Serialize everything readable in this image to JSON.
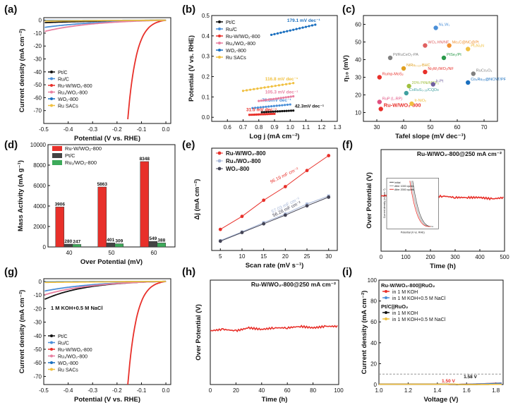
{
  "chart_data": [
    {
      "id": "a",
      "type": "line",
      "panel_label": "(a)",
      "xlabel": "Potential (V vs. RHE)",
      "ylabel": "Current density (mA cm⁻²)",
      "xlim": [
        -0.5,
        0.02
      ],
      "ylim": [
        -80,
        2
      ],
      "xticks": [
        "-0.5",
        "-0.4",
        "-0.3",
        "-0.2",
        "-0.1",
        "0.0"
      ],
      "yticks": [
        "0",
        "-10",
        "-20",
        "-30",
        "-40",
        "-50",
        "-60",
        "-70"
      ],
      "series": [
        {
          "name": "Pt/C",
          "color": "#111111",
          "onset": -0.02,
          "k": 0.0085
        },
        {
          "name": "Ru/C",
          "color": "#4a8fd8",
          "onset": -0.005,
          "k": 0.005
        },
        {
          "name": "Ru-W/WO₂-800",
          "color": "#e8302a",
          "onset": 0.0,
          "k": 0.0007
        },
        {
          "name": "Ru₁/WO₂-800",
          "color": "#e87fa0",
          "onset": 0.0,
          "k": 0.0042
        },
        {
          "name": "WO₂-800",
          "color": "#1a6fbf",
          "onset": 0.0,
          "k": 0.032
        },
        {
          "name": "Ru SACs",
          "color": "#f0c040",
          "onset": 0.0,
          "k": 0.018
        }
      ]
    },
    {
      "id": "b",
      "type": "line",
      "panel_label": "(b)",
      "xlabel": "Log j (mA cm⁻²)",
      "ylabel": "Potential (V vs. RHE)",
      "xlim": [
        0.5,
        1.3
      ],
      "ylim": [
        -0.02,
        0.5
      ],
      "xticks": [
        "0.6",
        "0.7",
        "0.8",
        "0.9",
        "1.0",
        "1.1",
        "1.2",
        "1.3"
      ],
      "yticks": [
        "0.0",
        "0.1",
        "0.2",
        "0.3",
        "0.4",
        "0.5"
      ],
      "series": [
        {
          "name": "Pt/C",
          "color": "#111111",
          "slope_label": "42.3mV dec⁻¹",
          "points": [
            [
              0.82,
              0.025
            ],
            [
              1.02,
              0.033
            ]
          ]
        },
        {
          "name": "Ru/C",
          "color": "#4a8fd8",
          "slope_label": "76.5mV dec⁻¹",
          "points": [
            [
              0.76,
              0.045
            ],
            [
              1.0,
              0.063
            ]
          ]
        },
        {
          "name": "Ru-W/WO₂-800",
          "color": "#e8302a",
          "slope_label": "31.5 mV dec⁻¹",
          "points": [
            [
              0.74,
              0.012
            ],
            [
              0.9,
              0.017
            ]
          ]
        },
        {
          "name": "Ru₁/WO₂-800",
          "color": "#e87fa0",
          "slope_label": "105.3 mV dec⁻¹",
          "points": [
            [
              0.8,
              0.08
            ],
            [
              1.02,
              0.103
            ]
          ]
        },
        {
          "name": "WO₂-800",
          "color": "#1a6fbf",
          "slope_label": "179.1 mV dec⁻¹",
          "points": [
            [
              0.88,
              0.405
            ],
            [
              1.16,
              0.455
            ]
          ]
        },
        {
          "name": "Ru SACs",
          "color": "#f0c040",
          "slope_label": "116.8 mV dec⁻¹",
          "points": [
            [
              0.7,
              0.13
            ],
            [
              1.02,
              0.168
            ]
          ]
        }
      ]
    },
    {
      "id": "c",
      "type": "scatter",
      "panel_label": "(c)",
      "xlabel": "Tafel slope (mV dec⁻¹)",
      "ylabel": "η₁₀ (mV)",
      "xlim": [
        25,
        75
      ],
      "ylim": [
        5,
        65
      ],
      "xticks": [
        "30",
        "40",
        "50",
        "60",
        "70"
      ],
      "yticks": [
        "10",
        "20",
        "30",
        "40",
        "50",
        "60"
      ],
      "points": [
        {
          "label": "Ru-W/WO₂-800",
          "x": 31.5,
          "y": 12,
          "color": "#e8302a"
        },
        {
          "label": "Ni₁.W₁",
          "x": 52,
          "y": 58,
          "color": "#4a8fd8"
        },
        {
          "label": "WO₂.HN/NF",
          "x": 48,
          "y": 48,
          "color": "#e06060"
        },
        {
          "label": "Mo₂C@NC@Pt",
          "x": 57,
          "y": 48,
          "color": "#f09030"
        },
        {
          "label": "Pt/RuCeO₂-PA",
          "x": 35,
          "y": 41,
          "color": "#808080"
        },
        {
          "label": "Pt₃Ni₃N",
          "x": 64,
          "y": 46,
          "color": "#f0c040"
        },
        {
          "label": "PtSe₂/Pt",
          "x": 55,
          "y": 41,
          "color": "#2a9a4a"
        },
        {
          "label": "NiRu₀.₁₃-BHC",
          "x": 40,
          "y": 35,
          "color": "#e0a020"
        },
        {
          "label": "Ni₅W₁/WO₂/NF",
          "x": 48,
          "y": 33,
          "color": "#e8302a"
        },
        {
          "label": "Ru/np-MoS₂",
          "x": 31,
          "y": 30,
          "color": "#e8302a"
        },
        {
          "label": "RuCo₂O₄",
          "x": 66,
          "y": 32,
          "color": "#808080"
        },
        {
          "label": "20% PtNi/MCF₂",
          "x": 42,
          "y": 25,
          "color": "#a0c040"
        },
        {
          "label": "Ir-Pt",
          "x": 51,
          "y": 26,
          "color": "#7060a0"
        },
        {
          "label": "CoRuS₀.₁₅/CQDs",
          "x": 41,
          "y": 21,
          "color": "#40a0a0"
        },
        {
          "label": "Co₄Ru₁₅@NCNT/PF",
          "x": 64,
          "y": 27,
          "color": "#1a6fbf"
        },
        {
          "label": "RuP (L-RP)",
          "x": 31,
          "y": 16,
          "color": "#e05080"
        },
        {
          "label": "Ir-NiOₓ",
          "x": 43,
          "y": 15,
          "color": "#f0c040"
        }
      ]
    },
    {
      "id": "d",
      "type": "bar",
      "panel_label": "(d)",
      "xlabel": "Over Potential (mV)",
      "ylabel": "Mass Activity (mA g⁻¹)",
      "categories": [
        "40",
        "50",
        "60"
      ],
      "ylim": [
        0,
        10000
      ],
      "yticks": [
        "0",
        "2000",
        "4000",
        "6000",
        "8000",
        "10000"
      ],
      "series": [
        {
          "name": "Ru-W/WO₂-800",
          "color": "#e8302a",
          "values": [
            3906,
            5863,
            8348
          ]
        },
        {
          "name": "Pt/C",
          "color": "#444444",
          "values": [
            280,
            401,
            549
          ]
        },
        {
          "name": "Ru₁/WO₂-800",
          "color": "#3daa5a",
          "values": [
            247,
            309,
            388
          ]
        }
      ],
      "value_labels": [
        [
          "3906",
          "280",
          "247"
        ],
        [
          "5863",
          "401",
          "309"
        ],
        [
          "8348",
          "549",
          "388"
        ]
      ]
    },
    {
      "id": "e",
      "type": "line",
      "panel_label": "(e)",
      "xlabel": "Scan rate (mV s⁻¹)",
      "ylabel": "Δj (mA cm⁻²)",
      "xlim": [
        3,
        32
      ],
      "ylim": [
        0,
        3.3
      ],
      "xticks": [
        "5",
        "10",
        "15",
        "20",
        "25",
        "30"
      ],
      "series": [
        {
          "name": "Ru-W/WO₂-800",
          "color": "#e8302a",
          "marker": "circle",
          "x": [
            5,
            10,
            15,
            20,
            25,
            30
          ],
          "y": [
            0.68,
            1.1,
            1.62,
            2.06,
            2.58,
            3.06
          ],
          "slope_label": "96.19 mF cm⁻²"
        },
        {
          "name": "Ru₁/WO₂-800",
          "color": "#a8b8d8",
          "marker": "square",
          "x": [
            5,
            10,
            15,
            20,
            25,
            30
          ],
          "y": [
            0.32,
            0.6,
            0.9,
            1.18,
            1.5,
            1.76
          ],
          "slope_label": "57.03 mF cm⁻²"
        },
        {
          "name": "WO₂-800",
          "color": "#444455",
          "marker": "circle",
          "x": [
            5,
            10,
            15,
            20,
            25,
            30
          ],
          "y": [
            0.3,
            0.58,
            0.86,
            1.14,
            1.44,
            1.72
          ],
          "slope_label": "56.28 mF cm⁻²"
        }
      ]
    },
    {
      "id": "f",
      "type": "line",
      "panel_label": "(f)",
      "title": "Ru-W/WO₂-800@250 mA cm⁻²",
      "xlabel": "Time (h)",
      "ylabel": "Over Potential (V)",
      "xlim": [
        0,
        500
      ],
      "ylim": [
        -0.5,
        0.2
      ],
      "xticks": [
        "0",
        "100",
        "200",
        "300",
        "400",
        "500"
      ],
      "series": [
        {
          "name": "Ru-W/WO₂-800",
          "color": "#e8302a",
          "x": [
            0,
            50,
            100,
            150,
            200,
            250,
            300,
            350,
            400,
            450,
            500
          ],
          "y": [
            -0.12,
            -0.11,
            -0.12,
            -0.12,
            -0.13,
            -0.12,
            -0.13,
            -0.13,
            -0.13,
            -0.14,
            -0.13
          ]
        }
      ],
      "inset": {
        "xlabel": "Potential (V vs. RHE)",
        "ylabel": "Current density (mA cm⁻²)",
        "legend": [
          "Initial",
          "After 1000 cycles",
          "After 2000 cycles"
        ]
      }
    },
    {
      "id": "g",
      "type": "line",
      "panel_label": "(g)",
      "annotation": "1 M KOH+0.5 M NaCl",
      "xlabel": "Potential (V vs. RHE)",
      "ylabel": "Current density (mA cm⁻²)",
      "xlim": [
        -0.5,
        0.02
      ],
      "ylim": [
        -76,
        2
      ],
      "xticks": [
        "-0.5",
        "-0.4",
        "-0.3",
        "-0.2",
        "-0.1",
        "0.0"
      ],
      "yticks": [
        "0",
        "-10",
        "-20",
        "-30",
        "-40",
        "-50",
        "-60",
        "-70"
      ],
      "series": [
        {
          "name": "Pt/C",
          "color": "#111111",
          "onset": -0.015,
          "k": 0.0035
        },
        {
          "name": "Ru/C",
          "color": "#4a8fd8",
          "onset": -0.005,
          "k": 0.0045
        },
        {
          "name": "Ru-W/WO₂-800",
          "color": "#e8302a",
          "onset": 0.0,
          "k": 0.0007
        },
        {
          "name": "Ru₁/WO₂-800",
          "color": "#e87fa0",
          "onset": 0.0,
          "k": 0.004
        },
        {
          "name": "WO₂-800",
          "color": "#1a6fbf",
          "onset": 0.0,
          "k": 0.03
        },
        {
          "name": "Ru SACs",
          "color": "#f0c040",
          "onset": 0.0,
          "k": 0.017
        }
      ]
    },
    {
      "id": "h",
      "type": "line",
      "panel_label": "(h)",
      "title": "Ru-W/WO₂-800@250 mA cm⁻²",
      "xlabel": "Time (h)",
      "ylabel": "Over Potential (V)",
      "xlim": [
        0,
        100
      ],
      "ylim": [
        -0.5,
        0.2
      ],
      "xticks": [
        "0",
        "20",
        "40",
        "60",
        "80",
        "100"
      ],
      "series": [
        {
          "name": "Ru-W/WO₂-800",
          "color": "#e8302a",
          "x": [
            0,
            10,
            20,
            30,
            40,
            50,
            60,
            70,
            80,
            90,
            100
          ],
          "y": [
            -0.14,
            -0.13,
            -0.14,
            -0.12,
            -0.13,
            -0.12,
            -0.12,
            -0.11,
            -0.12,
            -0.11,
            -0.11
          ]
        }
      ]
    },
    {
      "id": "i",
      "type": "line",
      "panel_label": "(i)",
      "xlabel": "Voltage (V)",
      "ylabel": "Current density (mA cm⁻²)",
      "xlim": [
        1.0,
        1.85
      ],
      "ylim": [
        0,
        100
      ],
      "xticks": [
        "1.0",
        "1.2",
        "1.4",
        "1.6",
        "1.8"
      ],
      "yticks": [
        "0",
        "20",
        "40",
        "60",
        "80",
        "100"
      ],
      "legend_groups": [
        "Ru-W/WO₂-800||RuO₂",
        "Pt/C||RuO₂"
      ],
      "annotations": [
        "1.50 V",
        "1.58 V"
      ],
      "series": [
        {
          "name": "in 1 M KOH",
          "group": 0,
          "color": "#e8302a",
          "onset": 1.48,
          "k": 0.017
        },
        {
          "name": "in 1 M KOH+0.5 M NaCl",
          "group": 0,
          "color": "#4a8fd8",
          "onset": 1.49,
          "k": 0.018
        },
        {
          "name": "in 1 M KOH",
          "group": 1,
          "color": "#111111",
          "onset": 1.53,
          "k": 0.06
        },
        {
          "name": "in 1 M KOH+0.5 M NaCl",
          "group": 1,
          "color": "#f0c040",
          "onset": 1.55,
          "k": 0.062
        }
      ]
    }
  ]
}
